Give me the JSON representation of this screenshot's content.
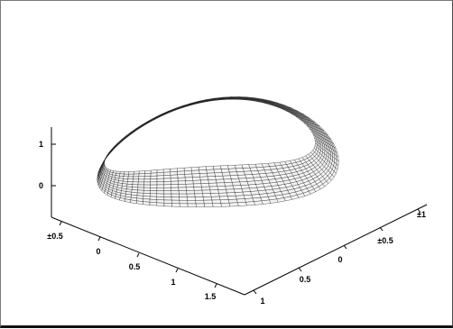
{
  "chart_data": {
    "type": "surface",
    "series": [],
    "axes": {
      "x": {
        "tick_labels": [
          "±0.5",
          "0",
          "0.5",
          "1",
          "1.5"
        ],
        "range": [
          -0.5,
          1.9
        ]
      },
      "y": {
        "tick_labels": [
          "1",
          "0.5",
          "0",
          "±0.5",
          "±1"
        ],
        "range": [
          -1,
          1
        ]
      },
      "z": {
        "tick_labels": [
          "0",
          "1"
        ],
        "range": [
          -0.3,
          1.2
        ]
      }
    },
    "grid": false,
    "legend": "none",
    "colors": {
      "surface_fill": "#f4f4f4",
      "mesh": "#1a1a1a",
      "axes": "#000000"
    }
  }
}
